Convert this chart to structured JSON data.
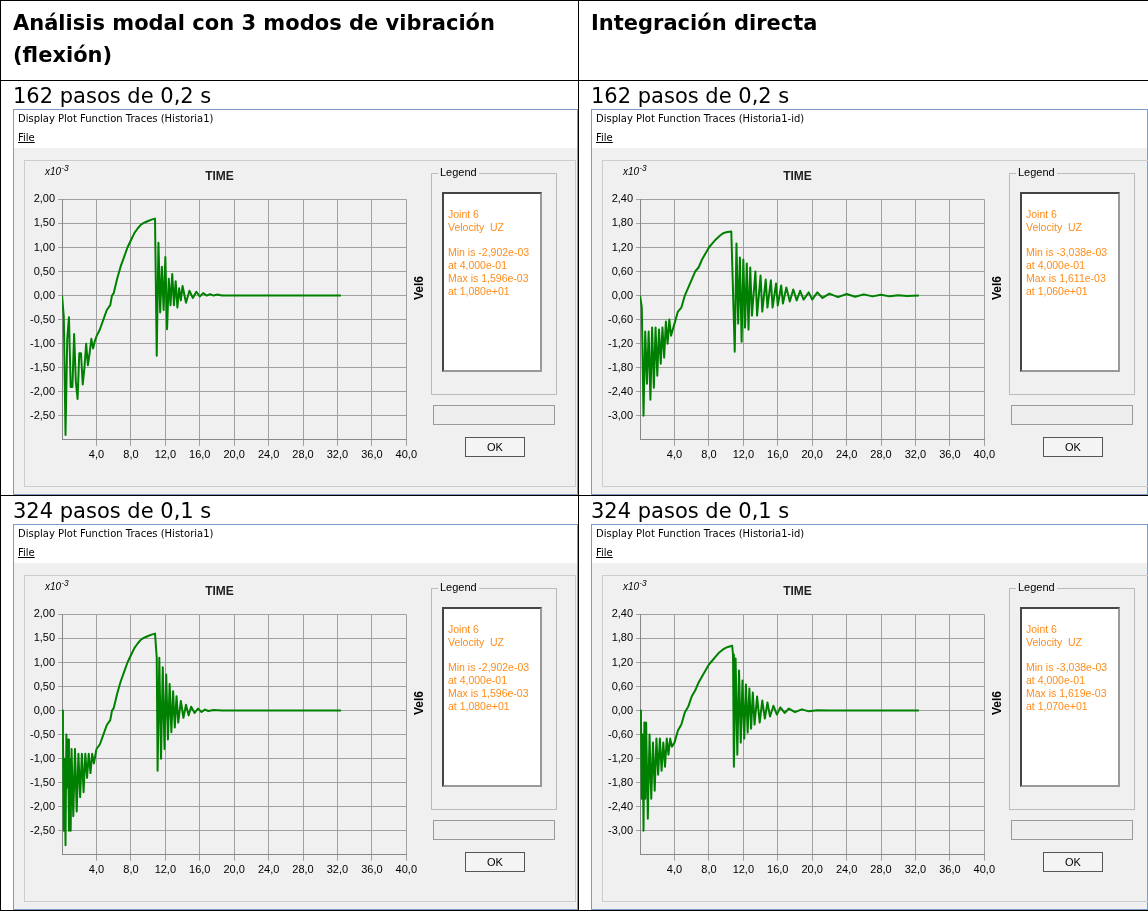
{
  "chart_data": [
    {
      "type": "line",
      "title": "Análisis modal con 3 modos de vibración (flexión)",
      "subtitle": "162 pasos de 0,2 s",
      "xlabel": "TIME",
      "ylabel": "Vel6",
      "legend_title": "Legend",
      "annotations": [
        "Display Plot Function Traces  (Historia1)",
        "File",
        "x10$^{-3}$",
        "Joint 6",
        "Velocity  UZ",
        "Min is -2,902e-03",
        "at 4,000e-01",
        "Max is 1,596e-03",
        "at 1,080e+01",
        "OK"
      ],
      "x": [
        0,
        0.2,
        0.4,
        0.6,
        0.8,
        1.0,
        1.2,
        1.4,
        1.6,
        1.8,
        2.0,
        2.2,
        2.4,
        2.6,
        2.8,
        3.0,
        3.2,
        3.4,
        3.6,
        3.8,
        4.0,
        4.4,
        4.8,
        5.2,
        5.6,
        5.8,
        6.0,
        6.4,
        6.8,
        7.2,
        7.6,
        8.0,
        8.4,
        8.8,
        9.2,
        9.6,
        10.0,
        10.4,
        10.8,
        11.0,
        11.2,
        11.4,
        11.6,
        11.8,
        12.0,
        12.2,
        12.4,
        12.6,
        12.8,
        13.0,
        13.2,
        13.4,
        13.6,
        13.8,
        14.0,
        14.4,
        14.8,
        15.2,
        15.6,
        16.0,
        16.4,
        16.8,
        17.2,
        17.6,
        18.0,
        18.6,
        32.4
      ],
      "series": [
        {
          "color": "#008000",
          "values": [
            0,
            -0.45,
            -2.9,
            -0.9,
            -0.45,
            -1.9,
            -1.9,
            -0.8,
            -1.8,
            -2.15,
            -1.2,
            -1.2,
            -1.85,
            -1.5,
            -1.0,
            -1.45,
            -1.2,
            -0.9,
            -1.1,
            -0.95,
            -0.85,
            -0.7,
            -0.5,
            -0.3,
            -0.2,
            0,
            0.05,
            0.35,
            0.6,
            0.8,
            1.0,
            1.15,
            1.3,
            1.4,
            1.48,
            1.52,
            1.55,
            1.58,
            1.6,
            -1.25,
            1.1,
            -0.35,
            0.6,
            -0.3,
            0.8,
            -0.7,
            0.35,
            -0.2,
            0.45,
            -0.2,
            0.3,
            -0.25,
            0.15,
            -0.1,
            0.2,
            -0.15,
            0.1,
            -0.05,
            0.08,
            -0.02,
            0.05,
            0,
            0.03,
            0,
            0.02,
            0,
            0
          ]
        }
      ],
      "xlim": [
        0,
        40
      ],
      "xticks": [
        {
          "value": 4,
          "label": "4,0"
        },
        {
          "value": 8,
          "label": "8,0"
        },
        {
          "value": 12,
          "label": "12,0"
        },
        {
          "value": 16,
          "label": "16,0"
        },
        {
          "value": 20,
          "label": "20,0"
        },
        {
          "value": 24,
          "label": "24,0"
        },
        {
          "value": 28,
          "label": "28,0"
        },
        {
          "value": 32,
          "label": "32,0"
        },
        {
          "value": 36,
          "label": "36,0"
        },
        {
          "value": 40,
          "label": "40,0"
        }
      ],
      "ylim": [
        -3,
        2
      ],
      "yticks": [
        {
          "value": 2,
          "label": "2,00"
        },
        {
          "value": 1.5,
          "label": "1,50"
        },
        {
          "value": 1,
          "label": "1,00"
        },
        {
          "value": 0.5,
          "label": "0,50"
        },
        {
          "value": 0,
          "label": "0,00"
        },
        {
          "value": -0.5,
          "label": "-0,50"
        },
        {
          "value": -1,
          "label": "-1,00"
        },
        {
          "value": -1.5,
          "label": "-1,50"
        },
        {
          "value": -2,
          "label": "-2,00"
        },
        {
          "value": -2.5,
          "label": "-2,50"
        }
      ],
      "grid": true,
      "marker": "none",
      "line_style": "solid"
    },
    {
      "type": "line",
      "title": "Integración directa",
      "subtitle": "162 pasos de 0,2 s",
      "xlabel": "TIME",
      "ylabel": "Vel6",
      "legend_title": "Legend",
      "annotations": [
        "Display Plot Function Traces  (Historia1-id)",
        "File",
        "x10$^{-3}$",
        "Joint 6",
        "Velocity  UZ",
        "Min is -3,038e-03",
        "at 4,000e-01",
        "Max is 1,611e-03",
        "at 1,060e+01",
        "OK"
      ],
      "x": [
        0,
        0.2,
        0.4,
        0.6,
        0.8,
        1.0,
        1.2,
        1.4,
        1.6,
        1.8,
        2.0,
        2.2,
        2.4,
        2.6,
        2.8,
        3.0,
        3.2,
        3.4,
        3.6,
        4.0,
        4.4,
        4.8,
        5.2,
        5.6,
        6.0,
        6.4,
        6.8,
        7.2,
        7.6,
        8.0,
        8.4,
        8.8,
        9.2,
        9.6,
        10.0,
        10.6,
        11.0,
        11.2,
        11.4,
        11.6,
        11.8,
        12.0,
        12.2,
        12.4,
        12.6,
        12.8,
        13.0,
        13.4,
        13.6,
        14.0,
        14.2,
        14.6,
        14.8,
        15.2,
        15.4,
        15.8,
        16.0,
        16.4,
        16.6,
        17.0,
        17.4,
        17.8,
        18.2,
        18.6,
        19.0,
        19.6,
        20.0,
        20.6,
        21.2,
        22.0,
        23.0,
        24.0,
        25.0,
        26.0,
        27.0,
        28.0,
        29.0,
        30.0,
        31.0,
        32.4
      ],
      "series": [
        {
          "color": "#008000",
          "values": [
            0,
            -0.3,
            -3.0,
            -0.9,
            -2.2,
            -0.9,
            -2.6,
            -0.8,
            -2.3,
            -0.8,
            -2.0,
            -0.85,
            -1.7,
            -0.8,
            -1.55,
            -0.65,
            -1.2,
            -0.6,
            -1.0,
            -0.7,
            -0.4,
            -0.3,
            0,
            0.2,
            0.4,
            0.6,
            0.7,
            0.9,
            1.05,
            1.2,
            1.3,
            1.4,
            1.48,
            1.55,
            1.58,
            1.6,
            -1.4,
            1.3,
            -0.7,
            0.95,
            -1.15,
            0.9,
            -0.8,
            0.8,
            -0.85,
            0.7,
            -0.5,
            0.6,
            -0.5,
            0.5,
            -0.4,
            0.4,
            -0.3,
            0.38,
            -0.3,
            0.3,
            -0.25,
            0.25,
            -0.2,
            0.2,
            -0.15,
            0.15,
            -0.12,
            0.12,
            -0.1,
            0.08,
            -0.1,
            0.08,
            -0.06,
            0.05,
            -0.04,
            0.04,
            -0.03,
            0.03,
            -0.02,
            0.02,
            -0.02,
            0.01,
            -0.01,
            0
          ]
        }
      ],
      "xlim": [
        0,
        40
      ],
      "xticks": [
        {
          "value": 4,
          "label": "4,0"
        },
        {
          "value": 8,
          "label": "8,0"
        },
        {
          "value": 12,
          "label": "12,0"
        },
        {
          "value": 16,
          "label": "16,0"
        },
        {
          "value": 20,
          "label": "20,0"
        },
        {
          "value": 24,
          "label": "24,0"
        },
        {
          "value": 28,
          "label": "28,0"
        },
        {
          "value": 32,
          "label": "32,0"
        },
        {
          "value": 36,
          "label": "36,0"
        },
        {
          "value": 40,
          "label": "40,0"
        }
      ],
      "ylim": [
        -3.6,
        2.4
      ],
      "yticks": [
        {
          "value": 2.4,
          "label": "2,40"
        },
        {
          "value": 1.8,
          "label": "1,80"
        },
        {
          "value": 1.2,
          "label": "1,20"
        },
        {
          "value": 0.6,
          "label": "0,60"
        },
        {
          "value": 0,
          "label": "0,00"
        },
        {
          "value": -0.6,
          "label": "-0,60"
        },
        {
          "value": -1.2,
          "label": "-1,20"
        },
        {
          "value": -1.8,
          "label": "-1,80"
        },
        {
          "value": -2.4,
          "label": "-2,40"
        },
        {
          "value": -3,
          "label": "-3,00"
        }
      ],
      "grid": true,
      "marker": "none",
      "line_style": "solid"
    },
    {
      "type": "line",
      "subtitle": "324 pasos de 0,1 s",
      "xlabel": "TIME",
      "ylabel": "Vel6",
      "legend_title": "Legend",
      "annotations": [
        "Display Plot Function Traces  (Historia1)",
        "File",
        "x10$^{-3}$",
        "Joint 6",
        "Velocity  UZ",
        "Min is -2,902e-03",
        "at 4,000e-01",
        "Max is 1,596e-03",
        "at 1,080e+01",
        "OK"
      ],
      "x": [
        0,
        0.1,
        0.2,
        0.3,
        0.4,
        0.5,
        0.6,
        0.7,
        0.8,
        0.9,
        1.0,
        1.1,
        1.3,
        1.5,
        1.7,
        1.9,
        2.1,
        2.3,
        2.5,
        2.7,
        2.9,
        3.1,
        3.3,
        3.5,
        3.7,
        4.0,
        4.4,
        4.8,
        5.2,
        5.6,
        5.8,
        6.0,
        6.4,
        6.8,
        7.2,
        7.6,
        8.0,
        8.4,
        8.8,
        9.2,
        9.6,
        10.0,
        10.4,
        10.8,
        11.0,
        11.1,
        11.3,
        11.5,
        11.7,
        11.9,
        12.1,
        12.3,
        12.5,
        12.7,
        12.9,
        13.1,
        13.3,
        13.5,
        13.8,
        14.1,
        14.4,
        14.7,
        15.0,
        15.4,
        15.8,
        16.2,
        16.6,
        17.0,
        17.6,
        18.6,
        32.4
      ],
      "series": [
        {
          "color": "#008000",
          "values": [
            0,
            -0.5,
            -2.5,
            -1.0,
            -2.8,
            -0.5,
            -1.6,
            -0.6,
            -2.5,
            -1.0,
            -2.5,
            -0.8,
            -2.2,
            -0.8,
            -2.1,
            -0.9,
            -1.8,
            -0.9,
            -1.7,
            -0.9,
            -1.4,
            -0.9,
            -1.3,
            -0.9,
            -1.1,
            -0.8,
            -0.7,
            -0.5,
            -0.3,
            -0.2,
            0,
            0.05,
            0.35,
            0.6,
            0.8,
            1.0,
            1.15,
            1.3,
            1.4,
            1.48,
            1.52,
            1.55,
            1.58,
            1.6,
            1.1,
            -1.25,
            1.1,
            -1.0,
            0.9,
            -0.8,
            0.75,
            -0.6,
            0.55,
            -0.45,
            0.4,
            -0.35,
            0.3,
            -0.25,
            0.2,
            -0.15,
            0.12,
            -0.1,
            0.08,
            -0.05,
            0.04,
            -0.03,
            0.02,
            -0.01,
            0.01,
            0,
            0
          ]
        }
      ],
      "xlim": [
        0,
        40
      ],
      "xticks": [
        {
          "value": 4,
          "label": "4,0"
        },
        {
          "value": 8,
          "label": "8,0"
        },
        {
          "value": 12,
          "label": "12,0"
        },
        {
          "value": 16,
          "label": "16,0"
        },
        {
          "value": 20,
          "label": "20,0"
        },
        {
          "value": 24,
          "label": "24,0"
        },
        {
          "value": 28,
          "label": "28,0"
        },
        {
          "value": 32,
          "label": "32,0"
        },
        {
          "value": 36,
          "label": "36,0"
        },
        {
          "value": 40,
          "label": "40,0"
        }
      ],
      "ylim": [
        -3,
        2
      ],
      "yticks": [
        {
          "value": 2,
          "label": "2,00"
        },
        {
          "value": 1.5,
          "label": "1,50"
        },
        {
          "value": 1,
          "label": "1,00"
        },
        {
          "value": 0.5,
          "label": "0,50"
        },
        {
          "value": 0,
          "label": "0,00"
        },
        {
          "value": -0.5,
          "label": "-0,50"
        },
        {
          "value": -1,
          "label": "-1,00"
        },
        {
          "value": -1.5,
          "label": "-1,50"
        },
        {
          "value": -2,
          "label": "-2,00"
        },
        {
          "value": -2.5,
          "label": "-2,50"
        }
      ],
      "grid": true,
      "marker": "none",
      "line_style": "solid"
    },
    {
      "type": "line",
      "subtitle": "324 pasos de 0,1 s",
      "xlabel": "TIME",
      "ylabel": "Vel6",
      "legend_title": "Legend",
      "annotations": [
        "Display Plot Function Traces  (Historia1-id)",
        "File",
        "x10$^{-3}$",
        "Joint 6",
        "Velocity  UZ",
        "Min is -3,038e-03",
        "at 4,000e-01",
        "Max is 1,619e-03",
        "at 1,070e+01",
        "OK"
      ],
      "x": [
        0,
        0.1,
        0.2,
        0.3,
        0.4,
        0.5,
        0.6,
        0.7,
        0.9,
        1.1,
        1.3,
        1.5,
        1.7,
        1.9,
        2.1,
        2.3,
        2.5,
        2.7,
        2.9,
        3.1,
        3.3,
        3.5,
        3.7,
        4.0,
        4.4,
        4.8,
        5.2,
        5.6,
        6.0,
        6.4,
        6.8,
        7.2,
        7.6,
        8.0,
        8.4,
        8.8,
        9.2,
        9.6,
        10.0,
        10.4,
        10.7,
        10.8,
        10.9,
        11.1,
        11.3,
        11.5,
        11.7,
        11.9,
        12.1,
        12.3,
        12.5,
        12.7,
        12.9,
        13.1,
        13.3,
        13.6,
        13.9,
        14.2,
        14.5,
        14.8,
        15.1,
        15.5,
        15.9,
        16.3,
        16.8,
        17.3,
        18.0,
        18.8,
        19.6,
        20.6,
        22.0,
        32.4
      ],
      "series": [
        {
          "color": "#008000",
          "values": [
            0,
            -0.2,
            -2.2,
            -0.6,
            -3.0,
            -0.3,
            -2.2,
            -0.3,
            -2.7,
            -0.6,
            -2.2,
            -0.8,
            -2.0,
            -0.7,
            -1.6,
            -0.7,
            -1.5,
            -0.8,
            -1.4,
            -0.7,
            -1.1,
            -0.7,
            -0.9,
            -0.8,
            -0.5,
            -0.35,
            -0.05,
            0.1,
            0.35,
            0.5,
            0.7,
            0.85,
            1.0,
            1.15,
            1.25,
            1.35,
            1.45,
            1.52,
            1.57,
            1.6,
            1.62,
            1.4,
            -1.4,
            1.3,
            -1.1,
            1.0,
            -0.8,
            0.75,
            -0.7,
            0.65,
            -0.55,
            0.55,
            -0.45,
            0.45,
            -0.35,
            0.35,
            -0.3,
            0.25,
            -0.2,
            0.2,
            -0.15,
            0.12,
            -0.1,
            0.08,
            -0.06,
            0.05,
            -0.04,
            0.03,
            -0.02,
            0.01,
            0,
            0
          ]
        }
      ],
      "xlim": [
        0,
        40
      ],
      "xticks": [
        {
          "value": 4,
          "label": "4,0"
        },
        {
          "value": 8,
          "label": "8,0"
        },
        {
          "value": 12,
          "label": "12,0"
        },
        {
          "value": 16,
          "label": "16,0"
        },
        {
          "value": 20,
          "label": "20,0"
        },
        {
          "value": 24,
          "label": "24,0"
        },
        {
          "value": 28,
          "label": "28,0"
        },
        {
          "value": 32,
          "label": "32,0"
        },
        {
          "value": 36,
          "label": "36,0"
        },
        {
          "value": 40,
          "label": "40,0"
        }
      ],
      "ylim": [
        -3.6,
        2.4
      ],
      "yticks": [
        {
          "value": 2.4,
          "label": "2,40"
        },
        {
          "value": 1.8,
          "label": "1,80"
        },
        {
          "value": 1.2,
          "label": "1,20"
        },
        {
          "value": 0.6,
          "label": "0,60"
        },
        {
          "value": 0,
          "label": "0,00"
        },
        {
          "value": -0.6,
          "label": "-0,60"
        },
        {
          "value": -1.2,
          "label": "-1,20"
        },
        {
          "value": -1.8,
          "label": "-1,80"
        },
        {
          "value": -2.4,
          "label": "-2,40"
        },
        {
          "value": -3,
          "label": "-3,00"
        }
      ],
      "grid": true,
      "marker": "none",
      "line_style": "solid"
    }
  ]
}
